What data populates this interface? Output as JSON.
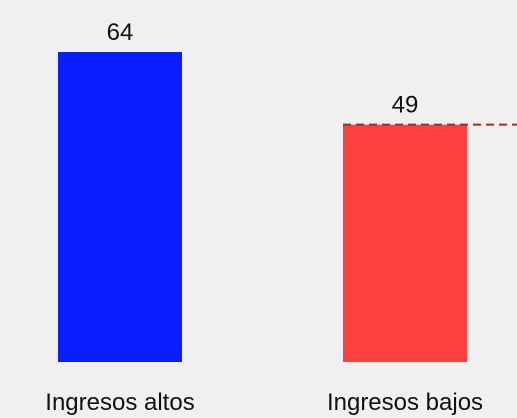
{
  "chart_data": {
    "type": "bar",
    "categories": [
      "Ingresos altos",
      "Ingresos bajos"
    ],
    "values": [
      64,
      49
    ],
    "colors": [
      "#0a1eff",
      "#ff4040"
    ],
    "data_labels": [
      "64",
      "49"
    ],
    "reference_line": {
      "value": 49,
      "color": "#a52a2a",
      "style": "dashed"
    },
    "title": "",
    "xlabel": "",
    "ylabel": "",
    "ylim": [
      0,
      64
    ]
  },
  "background": "#f0f0f0"
}
